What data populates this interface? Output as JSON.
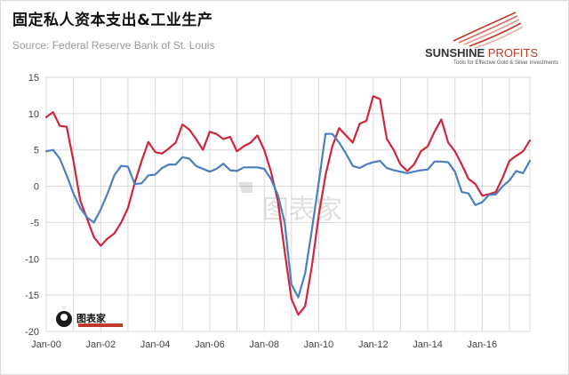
{
  "header": {
    "title": "固定私人资本支出&工业生产",
    "source": "Source: Federal Reserve Bank of St. Louis"
  },
  "logo": {
    "name_main": "SUNSHINE",
    "name_accent": " PROFITS",
    "tagline": "Tools for Effective Gold & Silver Investments"
  },
  "watermark": {
    "brand": "图表家"
  },
  "colors": {
    "capex_series": "#d0253a",
    "industrial_series": "#4a7fc1",
    "grid": "#d9d9d9"
  },
  "chart_data": {
    "type": "line",
    "title": "固定私人资本支出&工业生产",
    "xlabel": "",
    "ylabel": "",
    "x_ticks": [
      "Jan-00",
      "Jan-02",
      "Jan-04",
      "Jan-06",
      "Jan-08",
      "Jan-10",
      "Jan-12",
      "Jan-14",
      "Jan-16"
    ],
    "y_ticks": [
      15,
      10,
      5,
      0,
      -5,
      -10,
      -15,
      -20
    ],
    "ylim": [
      -20,
      15
    ],
    "xlim": [
      2000.0,
      2017.75
    ],
    "grid": true,
    "legend": "none",
    "series": [
      {
        "color": "#d0253a",
        "points": [
          [
            2000.0,
            9.5
          ],
          [
            2000.25,
            10.2
          ],
          [
            2000.5,
            8.3
          ],
          [
            2000.75,
            8.2
          ],
          [
            2001.0,
            3.5
          ],
          [
            2001.25,
            -2.0
          ],
          [
            2001.5,
            -4.5
          ],
          [
            2001.75,
            -7.0
          ],
          [
            2002.0,
            -8.2
          ],
          [
            2002.25,
            -7.2
          ],
          [
            2002.5,
            -6.5
          ],
          [
            2002.75,
            -5.0
          ],
          [
            2003.0,
            -3.0
          ],
          [
            2003.25,
            0.5
          ],
          [
            2003.5,
            3.5
          ],
          [
            2003.75,
            6.1
          ],
          [
            2004.0,
            4.7
          ],
          [
            2004.25,
            4.5
          ],
          [
            2004.5,
            5.2
          ],
          [
            2004.75,
            6.0
          ],
          [
            2005.0,
            8.5
          ],
          [
            2005.25,
            7.8
          ],
          [
            2005.5,
            6.5
          ],
          [
            2005.75,
            5.0
          ],
          [
            2006.0,
            7.5
          ],
          [
            2006.25,
            7.2
          ],
          [
            2006.5,
            6.5
          ],
          [
            2006.75,
            6.8
          ],
          [
            2007.0,
            4.8
          ],
          [
            2007.25,
            5.5
          ],
          [
            2007.5,
            6.0
          ],
          [
            2007.75,
            7.0
          ],
          [
            2008.0,
            5.0
          ],
          [
            2008.25,
            2.0
          ],
          [
            2008.5,
            -2.0
          ],
          [
            2008.75,
            -9.0
          ],
          [
            2009.0,
            -15.5
          ],
          [
            2009.25,
            -17.7
          ],
          [
            2009.5,
            -16.5
          ],
          [
            2009.75,
            -11.0
          ],
          [
            2010.0,
            -4.0
          ],
          [
            2010.25,
            1.5
          ],
          [
            2010.5,
            5.5
          ],
          [
            2010.75,
            8.0
          ],
          [
            2011.0,
            7.0
          ],
          [
            2011.25,
            6.0
          ],
          [
            2011.5,
            8.6
          ],
          [
            2011.75,
            9.0
          ],
          [
            2012.0,
            12.4
          ],
          [
            2012.25,
            12.0
          ],
          [
            2012.5,
            6.5
          ],
          [
            2012.75,
            5.0
          ],
          [
            2013.0,
            3.0
          ],
          [
            2013.25,
            2.1
          ],
          [
            2013.5,
            3.0
          ],
          [
            2013.75,
            4.8
          ],
          [
            2014.0,
            5.5
          ],
          [
            2014.25,
            7.5
          ],
          [
            2014.5,
            9.2
          ],
          [
            2014.75,
            6.0
          ],
          [
            2015.0,
            4.8
          ],
          [
            2015.25,
            3.0
          ],
          [
            2015.5,
            1.0
          ],
          [
            2015.75,
            0.3
          ],
          [
            2016.0,
            -1.3
          ],
          [
            2016.25,
            -1.1
          ],
          [
            2016.5,
            -0.8
          ],
          [
            2016.75,
            1.2
          ],
          [
            2017.0,
            3.5
          ],
          [
            2017.25,
            4.2
          ],
          [
            2017.5,
            4.8
          ],
          [
            2017.75,
            6.3
          ]
        ]
      },
      {
        "color": "#4a7fc1",
        "points": [
          [
            2000.0,
            4.8
          ],
          [
            2000.25,
            5.0
          ],
          [
            2000.5,
            3.8
          ],
          [
            2000.75,
            1.5
          ],
          [
            2001.0,
            -1.0
          ],
          [
            2001.25,
            -3.0
          ],
          [
            2001.5,
            -4.3
          ],
          [
            2001.75,
            -5.0
          ],
          [
            2002.0,
            -3.2
          ],
          [
            2002.25,
            -1.0
          ],
          [
            2002.5,
            1.5
          ],
          [
            2002.75,
            2.8
          ],
          [
            2003.0,
            2.7
          ],
          [
            2003.25,
            0.3
          ],
          [
            2003.5,
            0.4
          ],
          [
            2003.75,
            1.5
          ],
          [
            2004.0,
            1.6
          ],
          [
            2004.25,
            2.5
          ],
          [
            2004.5,
            3.0
          ],
          [
            2004.75,
            3.0
          ],
          [
            2005.0,
            4.0
          ],
          [
            2005.25,
            3.8
          ],
          [
            2005.5,
            2.8
          ],
          [
            2005.75,
            2.4
          ],
          [
            2006.0,
            2.0
          ],
          [
            2006.25,
            2.4
          ],
          [
            2006.5,
            3.1
          ],
          [
            2006.75,
            2.2
          ],
          [
            2007.0,
            2.1
          ],
          [
            2007.25,
            2.6
          ],
          [
            2007.5,
            2.6
          ],
          [
            2007.75,
            2.6
          ],
          [
            2008.0,
            2.4
          ],
          [
            2008.25,
            1.0
          ],
          [
            2008.5,
            -1.2
          ],
          [
            2008.75,
            -5.0
          ],
          [
            2009.0,
            -13.5
          ],
          [
            2009.25,
            -15.3
          ],
          [
            2009.5,
            -12.0
          ],
          [
            2009.75,
            -6.0
          ],
          [
            2010.0,
            0.5
          ],
          [
            2010.25,
            7.2
          ],
          [
            2010.5,
            7.2
          ],
          [
            2010.75,
            6.0
          ],
          [
            2011.0,
            4.5
          ],
          [
            2011.25,
            2.8
          ],
          [
            2011.5,
            2.5
          ],
          [
            2011.75,
            3.0
          ],
          [
            2012.0,
            3.3
          ],
          [
            2012.25,
            3.5
          ],
          [
            2012.5,
            2.5
          ],
          [
            2012.75,
            2.2
          ],
          [
            2013.0,
            2.0
          ],
          [
            2013.25,
            1.8
          ],
          [
            2013.5,
            2.0
          ],
          [
            2013.75,
            2.2
          ],
          [
            2014.0,
            2.3
          ],
          [
            2014.25,
            3.4
          ],
          [
            2014.5,
            3.4
          ],
          [
            2014.75,
            3.3
          ],
          [
            2015.0,
            2.0
          ],
          [
            2015.25,
            -0.8
          ],
          [
            2015.5,
            -1.0
          ],
          [
            2015.75,
            -2.6
          ],
          [
            2016.0,
            -2.2
          ],
          [
            2016.25,
            -1.2
          ],
          [
            2016.5,
            -1.1
          ],
          [
            2016.75,
            0.0
          ],
          [
            2017.0,
            0.8
          ],
          [
            2017.25,
            2.1
          ],
          [
            2017.5,
            1.8
          ],
          [
            2017.75,
            3.5
          ]
        ]
      }
    ]
  }
}
